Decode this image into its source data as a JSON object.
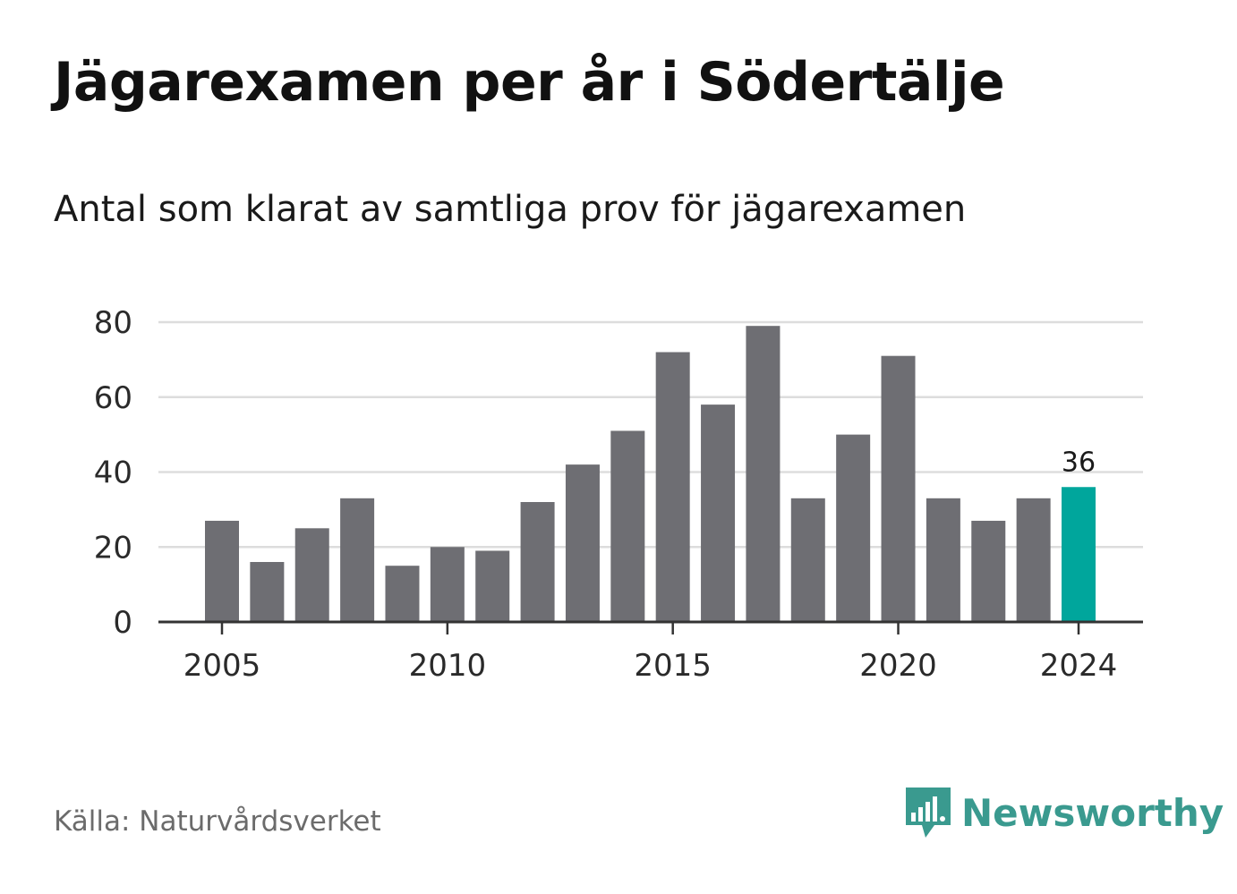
{
  "title": "Jägarexamen per år i Södertälje",
  "subtitle": "Antal som klarat av samtliga prov för jägarexamen",
  "source": "Källa: Naturvårdsverket",
  "brand": {
    "name": "Newsworthy",
    "color": "#3a9a8f",
    "icon": "newsworthy-chart-bubble-icon"
  },
  "colors": {
    "bar": "#6e6e73",
    "highlight": "#00a69c",
    "grid": "#dddddd",
    "axis": "#333333"
  },
  "chart_data": {
    "type": "bar",
    "x": [
      2005,
      2006,
      2007,
      2008,
      2009,
      2010,
      2011,
      2012,
      2013,
      2014,
      2015,
      2016,
      2017,
      2018,
      2019,
      2020,
      2021,
      2022,
      2023,
      2024
    ],
    "values": [
      27,
      16,
      25,
      33,
      15,
      20,
      19,
      32,
      42,
      51,
      72,
      58,
      79,
      33,
      50,
      71,
      33,
      27,
      33,
      36
    ],
    "highlight_x": 2024,
    "highlight_label": "36",
    "xticks": [
      "2005",
      "2010",
      "2015",
      "2020",
      "2024"
    ],
    "yticks": [
      "0",
      "20",
      "40",
      "60",
      "80"
    ],
    "ylim": [
      0,
      80
    ],
    "grid": true
  }
}
